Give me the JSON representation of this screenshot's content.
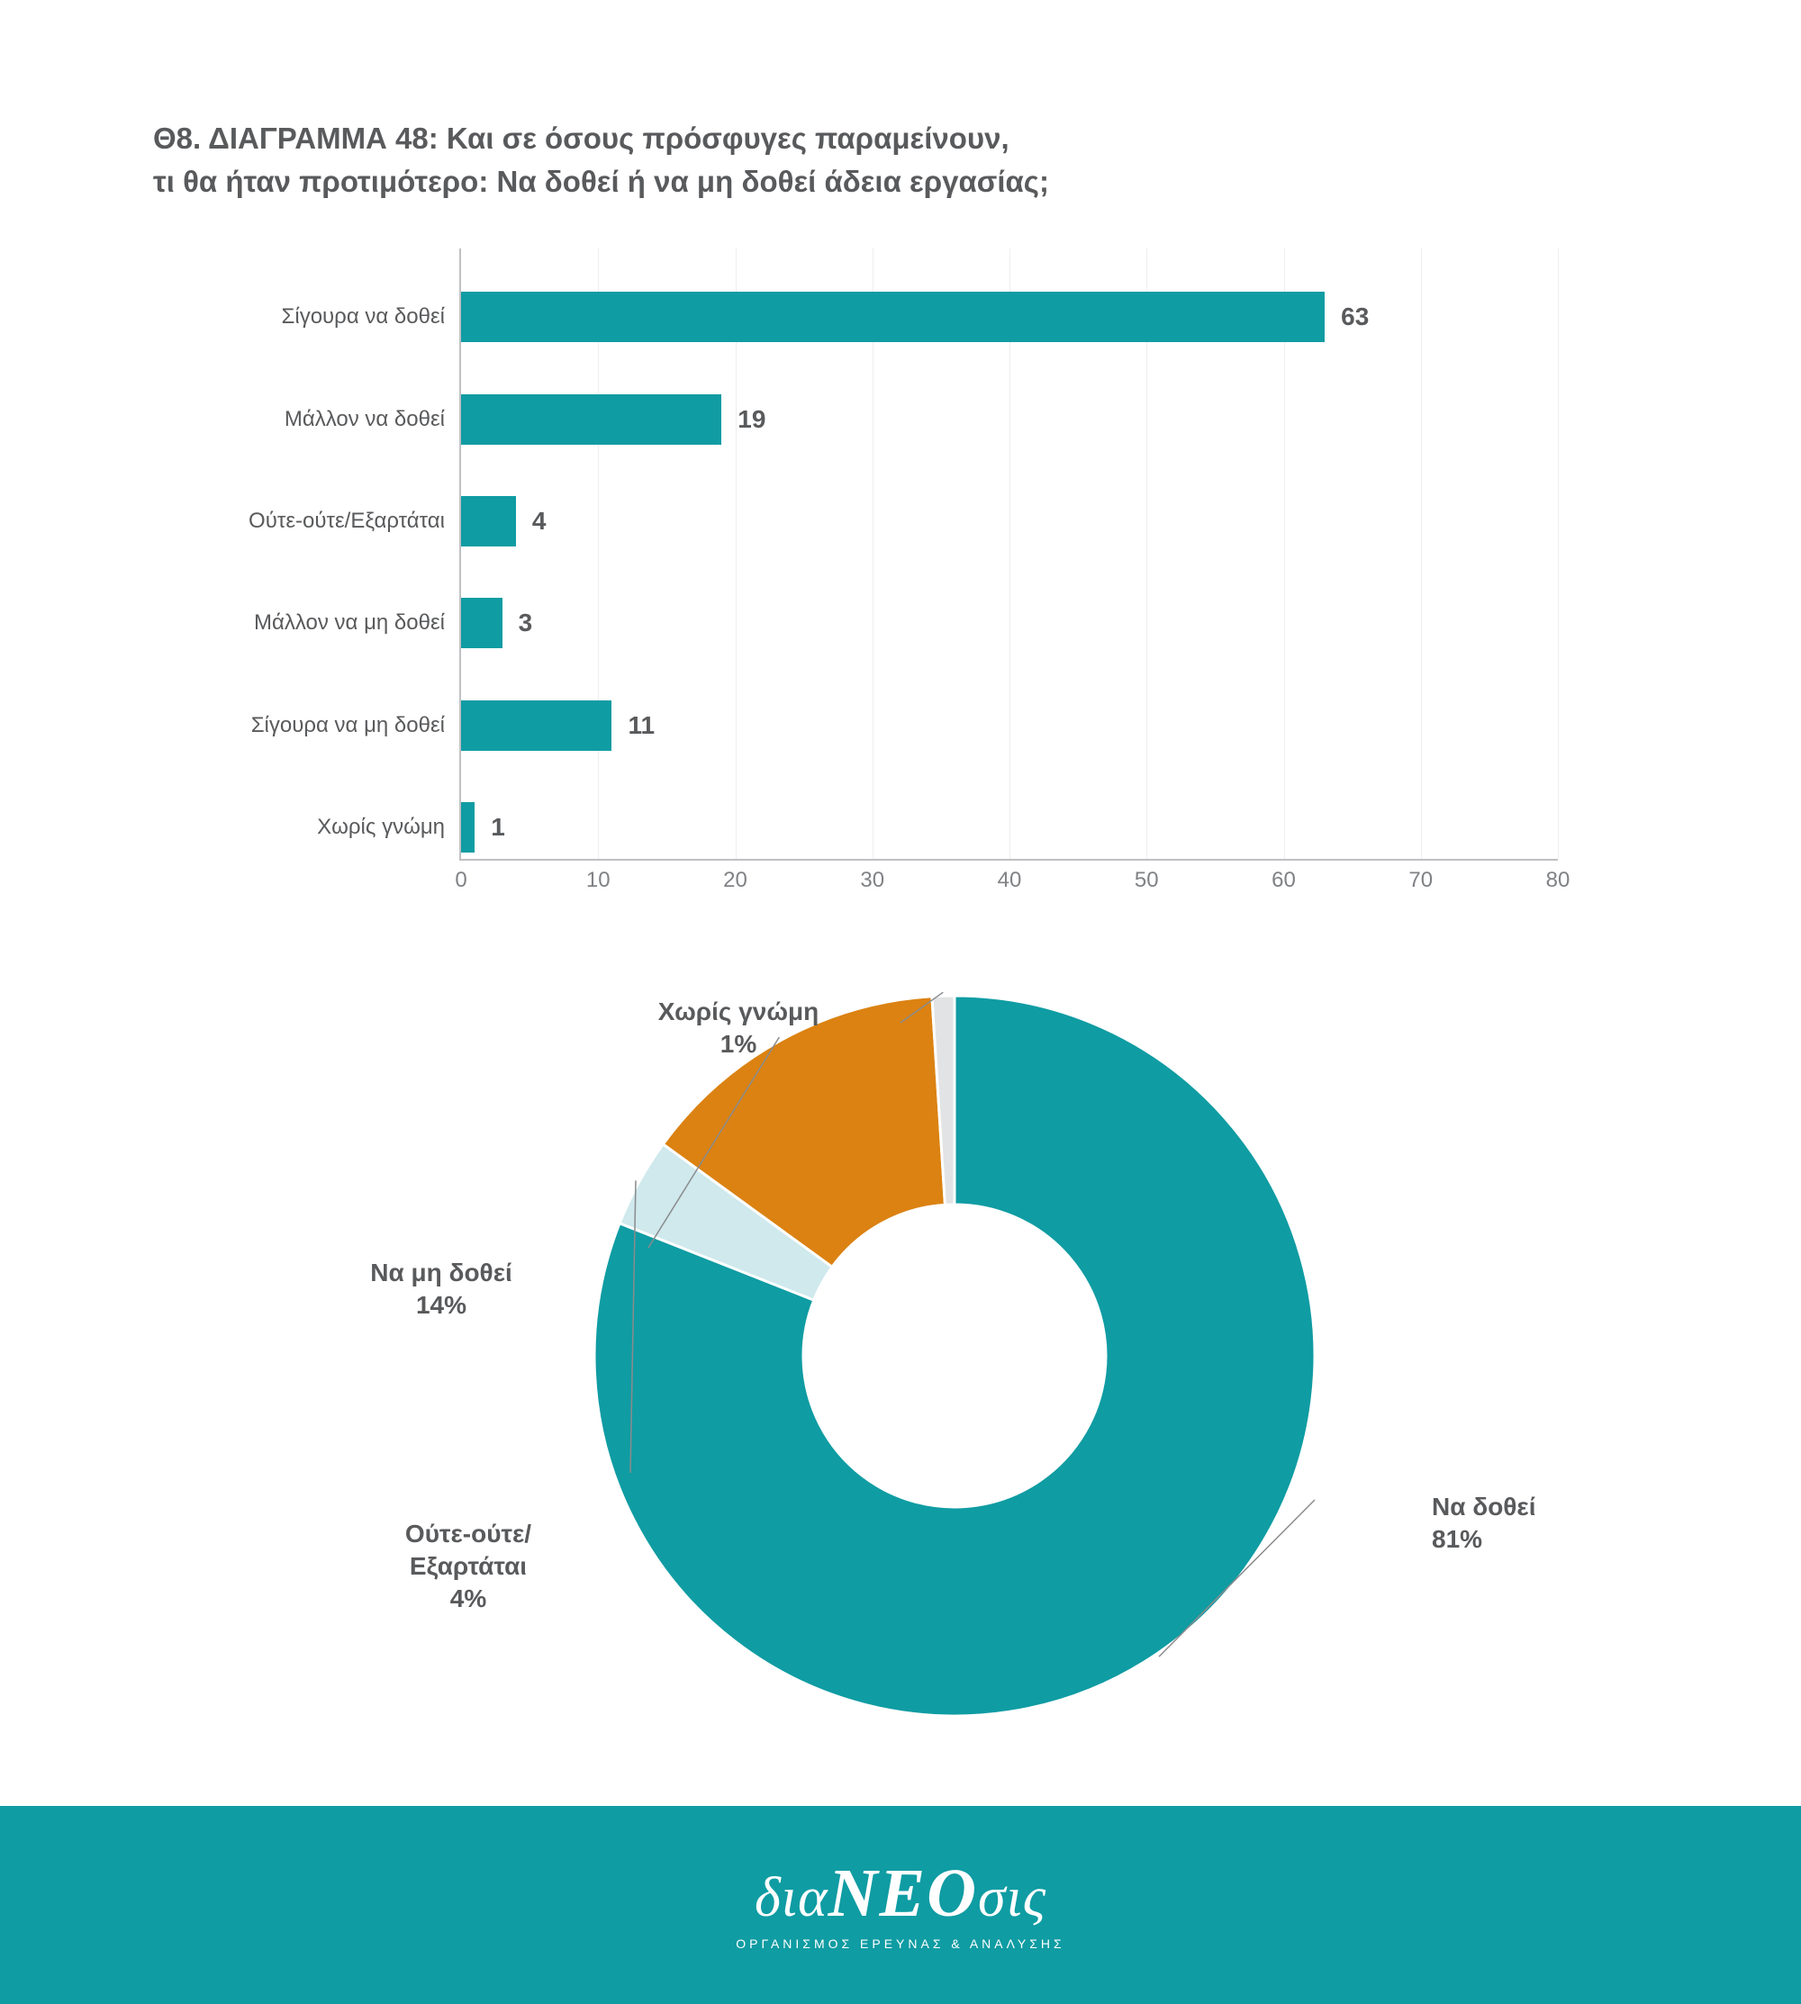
{
  "title_line1": "Θ8. ΔΙΑΓΡΑΜΜΑ 48: Και σε όσους πρόσφυγες παραμείνουν,",
  "title_line2": "τι θα ήταν προτιμότερο: Να δοθεί ή να μη δοθεί άδεια εργασίας;",
  "colors": {
    "bar": "#0f9ca3",
    "axis": "#bfc0c2",
    "text": "#595a5c",
    "tick": "#808285",
    "footer_bg": "#0f9ca3"
  },
  "bar_chart": {
    "type": "bar-horizontal",
    "xlim": [
      0,
      80
    ],
    "xtick_step": 10,
    "bar_color": "#0f9ca3",
    "categories": [
      {
        "label": "Σίγουρα να δοθεί",
        "value": 63
      },
      {
        "label": "Μάλλον να δοθεί",
        "value": 19
      },
      {
        "label": "Ούτε-ούτε/Εξαρτάται",
        "value": 4
      },
      {
        "label": "Μάλλον να μη δοθεί",
        "value": 3
      },
      {
        "label": "Σίγουρα να μη δοθεί",
        "value": 11
      },
      {
        "label": "Χωρίς γνώμη",
        "value": 1
      }
    ]
  },
  "donut": {
    "type": "donut",
    "inner_radius_ratio": 0.42,
    "slices": [
      {
        "label": "Να δοθεί",
        "pct": "81%",
        "value": 81,
        "color": "#0f9ca3"
      },
      {
        "label": "Ούτε-ούτε/\nΕξαρτάται",
        "pct": "4%",
        "value": 4,
        "color": "#cfe9ed"
      },
      {
        "label": "Να μη δοθεί",
        "pct": "14%",
        "value": 14,
        "color": "#db8212"
      },
      {
        "label": "Χωρίς γνώμη",
        "pct": "1%",
        "value": 1,
        "color": "#e2e3e4"
      }
    ]
  },
  "footer": {
    "logo_prefix": "δια",
    "logo_mid": "ΝΕΟ",
    "logo_suffix": "σις",
    "tagline": "ΟΡΓΑΝΙΣΜΟΣ ΕΡΕΥΝΑΣ & ΑΝΑΛΥΣΗΣ"
  }
}
